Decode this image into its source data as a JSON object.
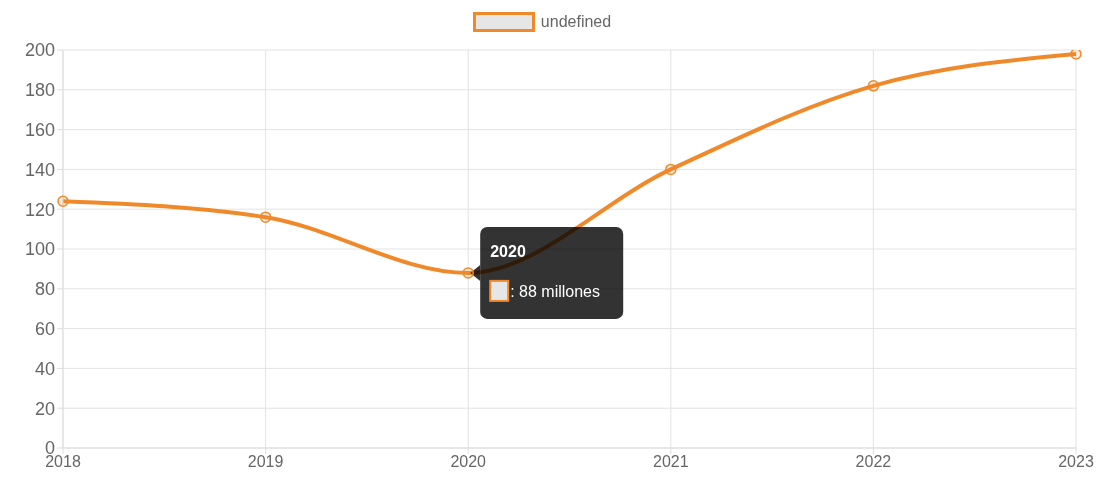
{
  "chart_data": {
    "type": "line",
    "categories": [
      "2018",
      "2019",
      "2020",
      "2021",
      "2022",
      "2023"
    ],
    "series": [
      {
        "name": "undefined",
        "color": "#f0892a",
        "values": [
          124,
          116,
          88,
          140,
          182,
          198
        ]
      }
    ],
    "ylim": [
      0,
      200
    ],
    "yticks": [
      0,
      20,
      40,
      60,
      80,
      100,
      120,
      140,
      160,
      180,
      200
    ],
    "grid": true,
    "legend": "top",
    "marker": "circle",
    "line_style": "solid",
    "annotations": [
      {
        "text": "2020",
        "x": "2020",
        "y": 88
      },
      {
        "text": ": 88 millones",
        "x": "2020",
        "y": 88
      }
    ]
  }
}
